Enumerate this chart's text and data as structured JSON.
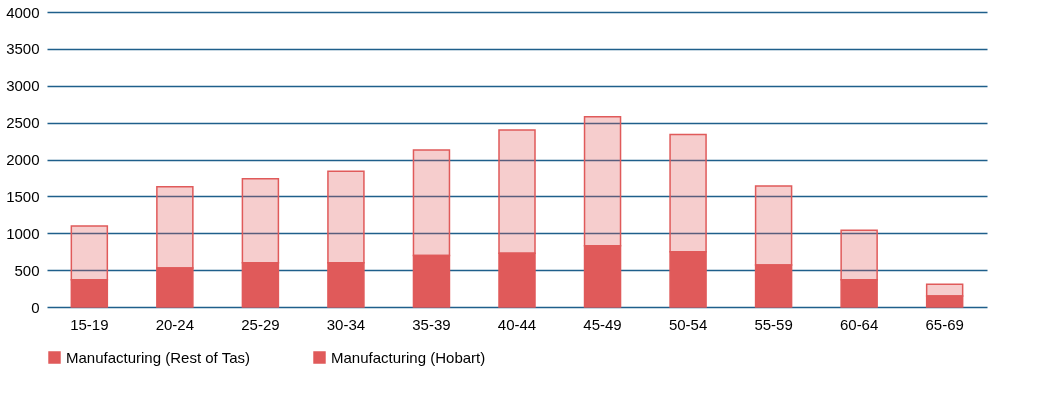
{
  "chart_data": {
    "type": "bar",
    "stacked": true,
    "categories": [
      "15-19",
      "20-24",
      "25-29",
      "30-34",
      "35-39",
      "40-44",
      "45-49",
      "50-54",
      "55-59",
      "60-64",
      "65-69"
    ],
    "series": [
      {
        "name": "Manufacturing (Hobart)",
        "color": "#e05a5a",
        "values": [
          370,
          530,
          600,
          600,
          700,
          730,
          830,
          750,
          570,
          370,
          150
        ]
      },
      {
        "name": "Manufacturing (Rest of Tas)",
        "color": "#e05a5a",
        "values": [
          730,
          1100,
          1140,
          1240,
          1430,
          1670,
          1750,
          1590,
          1070,
          670,
          160
        ]
      }
    ],
    "ylim": [
      0,
      4000
    ],
    "yticks": [
      0,
      500,
      1000,
      1500,
      2000,
      2500,
      3000,
      3500,
      4000
    ],
    "grid": "y",
    "legend": "bottom"
  }
}
